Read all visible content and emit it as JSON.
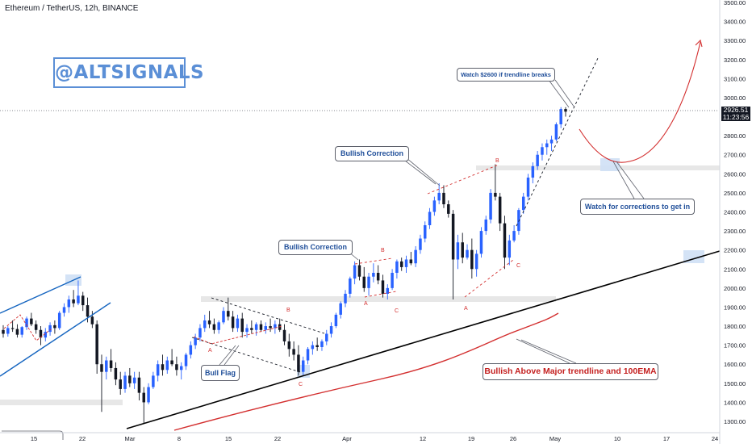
{
  "chart_title": "Ethereum / TetherUS, 12h, BINANCE",
  "watermark": "@ALTSIGNALS",
  "price_label": {
    "price": "2926.51",
    "countdown": "11:23:56"
  },
  "callouts": {
    "watch_2600": "Watch $2600 if trendline breaks",
    "bullish_correction_upper": "Bullish Correction",
    "bullish_correction_lower": "Bullish Correction",
    "watch_corrections": "Watch for corrections to get in",
    "bull_flag": "Bull Flag",
    "bullish_above": "Bullish Above Major trendline and 100EMA"
  },
  "wave_labels": [
    "A",
    "B",
    "C",
    "A",
    "B",
    "C",
    "A",
    "B",
    "C"
  ],
  "colors": {
    "up_candle": "#2962ff",
    "down_candle": "#131722",
    "ema": "#d32f2f",
    "trendline": "#000000",
    "channel": "#1565c0",
    "zone_grey": "#e4e4e4",
    "zone_blue": "#cfe0f5",
    "projection": "#d32f2f"
  },
  "chart_data": {
    "type": "candlestick",
    "title": "Ethereum / TetherUS, 12h, BINANCE",
    "ylim": [
      1250,
      3500
    ],
    "y_ticks": [
      1300,
      1400,
      1500,
      1600,
      1700,
      1800,
      1900,
      2000,
      2100,
      2200,
      2300,
      2400,
      2500,
      2600,
      2700,
      2800,
      2900,
      3000,
      3100,
      3200,
      3300,
      3400,
      3500
    ],
    "y_tick_labels": [
      "1300.00",
      "1400.00",
      "1500.00",
      "1600.00",
      "1700.00",
      "1800.00",
      "1900.00",
      "2000.00",
      "2100.00",
      "2200.00",
      "2300.00",
      "2400.00",
      "2500.00",
      "2600.00",
      "2700.00",
      "2800.00",
      "2900.00",
      "3000.00",
      "3100.00",
      "3200.00",
      "3300.00",
      "3400.00",
      "3500.00"
    ],
    "x_tick_labels": [
      "15",
      "22",
      "Mar",
      "8",
      "15",
      "22",
      "Apr",
      "12",
      "19",
      "26",
      "May",
      "10",
      "17",
      "24"
    ],
    "last_price": 2926.51,
    "ohlc": [
      [
        1780,
        1805,
        1740,
        1760
      ],
      [
        1760,
        1800,
        1745,
        1790
      ],
      [
        1790,
        1830,
        1770,
        1785
      ],
      [
        1785,
        1810,
        1740,
        1755
      ],
      [
        1755,
        1800,
        1740,
        1795
      ],
      [
        1795,
        1850,
        1780,
        1840
      ],
      [
        1840,
        1870,
        1800,
        1810
      ],
      [
        1810,
        1830,
        1760,
        1780
      ],
      [
        1780,
        1800,
        1700,
        1740
      ],
      [
        1740,
        1790,
        1720,
        1770
      ],
      [
        1770,
        1820,
        1750,
        1805
      ],
      [
        1805,
        1830,
        1760,
        1790
      ],
      [
        1790,
        1880,
        1780,
        1870
      ],
      [
        1870,
        1920,
        1850,
        1900
      ],
      [
        1900,
        1960,
        1870,
        1940
      ],
      [
        1940,
        1990,
        1900,
        1920
      ],
      [
        1920,
        2040,
        1910,
        1960
      ],
      [
        1960,
        1980,
        1880,
        1910
      ],
      [
        1910,
        1950,
        1820,
        1850
      ],
      [
        1850,
        1880,
        1790,
        1810
      ],
      [
        1810,
        1830,
        1550,
        1600
      ],
      [
        1600,
        1650,
        1350,
        1560
      ],
      [
        1560,
        1640,
        1520,
        1620
      ],
      [
        1620,
        1680,
        1560,
        1580
      ],
      [
        1580,
        1610,
        1490,
        1520
      ],
      [
        1520,
        1560,
        1440,
        1470
      ],
      [
        1470,
        1560,
        1450,
        1540
      ],
      [
        1540,
        1580,
        1480,
        1500
      ],
      [
        1500,
        1560,
        1470,
        1530
      ],
      [
        1530,
        1560,
        1410,
        1450
      ],
      [
        1450,
        1480,
        1290,
        1400
      ],
      [
        1400,
        1500,
        1390,
        1480
      ],
      [
        1480,
        1560,
        1470,
        1540
      ],
      [
        1540,
        1620,
        1510,
        1600
      ],
      [
        1600,
        1650,
        1540,
        1570
      ],
      [
        1570,
        1640,
        1550,
        1620
      ],
      [
        1620,
        1680,
        1590,
        1600
      ],
      [
        1600,
        1640,
        1540,
        1570
      ],
      [
        1570,
        1610,
        1520,
        1590
      ],
      [
        1590,
        1660,
        1570,
        1650
      ],
      [
        1650,
        1720,
        1630,
        1700
      ],
      [
        1700,
        1760,
        1680,
        1740
      ],
      [
        1740,
        1810,
        1720,
        1790
      ],
      [
        1790,
        1860,
        1770,
        1830
      ],
      [
        1830,
        1880,
        1790,
        1810
      ],
      [
        1810,
        1840,
        1760,
        1780
      ],
      [
        1780,
        1830,
        1760,
        1820
      ],
      [
        1820,
        1900,
        1810,
        1880
      ],
      [
        1880,
        1950,
        1830,
        1850
      ],
      [
        1850,
        1880,
        1770,
        1790
      ],
      [
        1790,
        1860,
        1770,
        1840
      ],
      [
        1840,
        1870,
        1740,
        1770
      ],
      [
        1770,
        1810,
        1740,
        1790
      ],
      [
        1790,
        1830,
        1760,
        1780
      ],
      [
        1780,
        1820,
        1750,
        1810
      ],
      [
        1810,
        1830,
        1770,
        1780
      ],
      [
        1780,
        1820,
        1760,
        1800
      ],
      [
        1800,
        1840,
        1770,
        1790
      ],
      [
        1790,
        1830,
        1760,
        1810
      ],
      [
        1810,
        1840,
        1770,
        1780
      ],
      [
        1780,
        1810,
        1700,
        1720
      ],
      [
        1720,
        1760,
        1640,
        1680
      ],
      [
        1680,
        1720,
        1620,
        1650
      ],
      [
        1650,
        1700,
        1540,
        1560
      ],
      [
        1560,
        1640,
        1540,
        1620
      ],
      [
        1620,
        1690,
        1600,
        1680
      ],
      [
        1680,
        1720,
        1650,
        1700
      ],
      [
        1700,
        1740,
        1670,
        1690
      ],
      [
        1690,
        1730,
        1670,
        1720
      ],
      [
        1720,
        1780,
        1700,
        1760
      ],
      [
        1760,
        1820,
        1740,
        1800
      ],
      [
        1800,
        1870,
        1790,
        1860
      ],
      [
        1860,
        1930,
        1840,
        1920
      ],
      [
        1920,
        1990,
        1900,
        1970
      ],
      [
        1970,
        2060,
        1950,
        2050
      ],
      [
        2050,
        2140,
        2020,
        2120
      ],
      [
        2120,
        2150,
        2040,
        2060
      ],
      [
        2060,
        2110,
        1980,
        2000
      ],
      [
        2000,
        2080,
        1960,
        2060
      ],
      [
        2060,
        2130,
        2030,
        2080
      ],
      [
        2080,
        2120,
        2020,
        2040
      ],
      [
        2040,
        2070,
        1950,
        1970
      ],
      [
        1970,
        2020,
        1940,
        2000
      ],
      [
        2000,
        2100,
        1990,
        2080
      ],
      [
        2080,
        2150,
        2050,
        2140
      ],
      [
        2140,
        2160,
        2090,
        2110
      ],
      [
        2110,
        2170,
        2080,
        2150
      ],
      [
        2150,
        2190,
        2120,
        2130
      ],
      [
        2130,
        2220,
        2110,
        2200
      ],
      [
        2200,
        2280,
        2180,
        2260
      ],
      [
        2260,
        2350,
        2240,
        2330
      ],
      [
        2330,
        2420,
        2310,
        2400
      ],
      [
        2400,
        2480,
        2380,
        2460
      ],
      [
        2460,
        2550,
        2440,
        2500
      ],
      [
        2500,
        2540,
        2420,
        2440
      ],
      [
        2440,
        2460,
        2370,
        2390
      ],
      [
        2390,
        2410,
        1940,
        2150
      ],
      [
        2150,
        2280,
        2100,
        2240
      ],
      [
        2240,
        2290,
        2130,
        2160
      ],
      [
        2160,
        2230,
        2150,
        2200
      ],
      [
        2200,
        2260,
        2050,
        2100
      ],
      [
        2100,
        2200,
        2060,
        2180
      ],
      [
        2180,
        2320,
        2160,
        2300
      ],
      [
        2300,
        2380,
        2280,
        2360
      ],
      [
        2360,
        2520,
        2340,
        2500
      ],
      [
        2500,
        2650,
        2460,
        2480
      ],
      [
        2480,
        2500,
        2300,
        2340
      ],
      [
        2340,
        2380,
        2100,
        2160
      ],
      [
        2160,
        2280,
        2120,
        2250
      ],
      [
        2250,
        2330,
        2240,
        2300
      ],
      [
        2300,
        2420,
        2280,
        2410
      ],
      [
        2410,
        2500,
        2390,
        2480
      ],
      [
        2480,
        2600,
        2460,
        2580
      ],
      [
        2580,
        2660,
        2550,
        2640
      ],
      [
        2640,
        2720,
        2620,
        2700
      ],
      [
        2700,
        2760,
        2670,
        2740
      ],
      [
        2740,
        2780,
        2700,
        2760
      ],
      [
        2760,
        2800,
        2720,
        2780
      ],
      [
        2780,
        2870,
        2770,
        2860
      ],
      [
        2860,
        2950,
        2840,
        2940
      ],
      [
        2940,
        2950,
        2900,
        2926.51
      ]
    ]
  }
}
